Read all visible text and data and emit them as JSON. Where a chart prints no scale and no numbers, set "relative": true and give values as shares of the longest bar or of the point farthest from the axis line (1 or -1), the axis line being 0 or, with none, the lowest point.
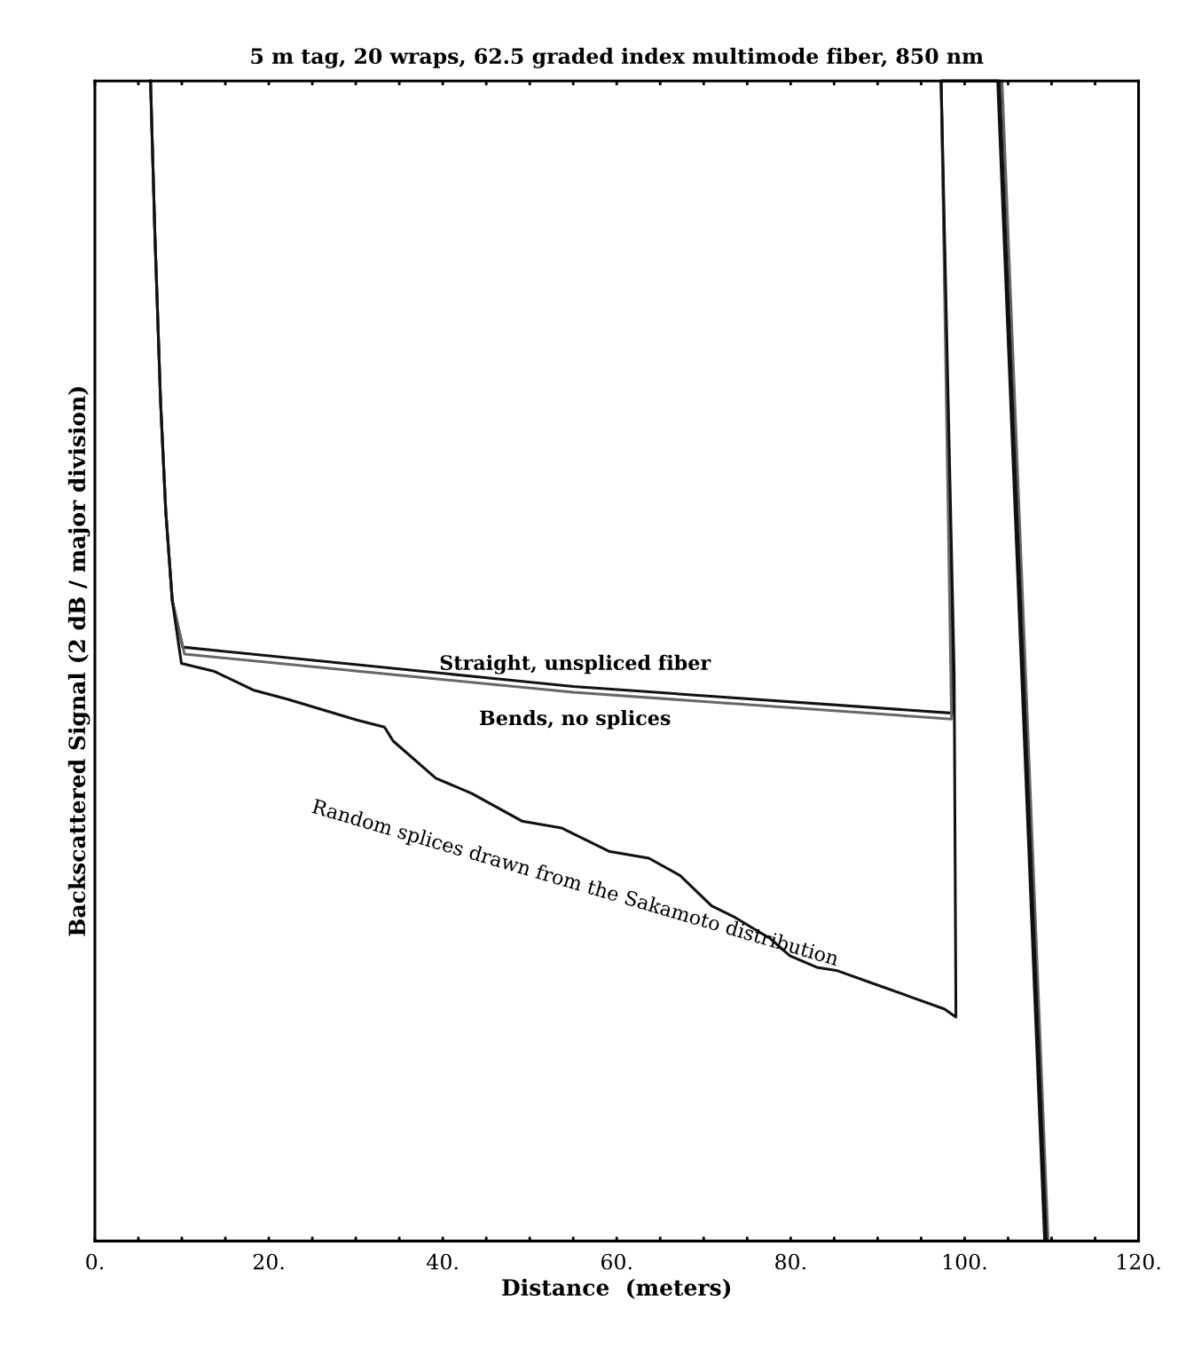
{
  "chart_data": {
    "type": "line",
    "title": "5 m tag, 20 wraps, 62.5 graded index multimode fiber, 850 nm",
    "xlabel": "Distance  (meters)",
    "ylabel": "Backscattered Signal (2 dB / major division)",
    "relative": true,
    "tick_labels": "x",
    "grid": false,
    "legend": false,
    "marker": "none",
    "line_style": "solid",
    "xlim": [
      0,
      120
    ],
    "xticks": [
      {
        "value": 0,
        "label": "0."
      },
      {
        "value": 5,
        "label": null
      },
      {
        "value": 10,
        "label": null
      },
      {
        "value": 15,
        "label": null
      },
      {
        "value": 20,
        "label": "20."
      },
      {
        "value": 25,
        "label": null
      },
      {
        "value": 30,
        "label": null
      },
      {
        "value": 35,
        "label": null
      },
      {
        "value": 40,
        "label": "40."
      },
      {
        "value": 45,
        "label": null
      },
      {
        "value": 50,
        "label": null
      },
      {
        "value": 55,
        "label": null
      },
      {
        "value": 60,
        "label": "60."
      },
      {
        "value": 65,
        "label": null
      },
      {
        "value": 70,
        "label": null
      },
      {
        "value": 75,
        "label": null
      },
      {
        "value": 80,
        "label": "80."
      },
      {
        "value": 85,
        "label": null
      },
      {
        "value": 90,
        "label": null
      },
      {
        "value": 95,
        "label": null
      },
      {
        "value": 100,
        "label": "100."
      },
      {
        "value": 105,
        "label": null
      },
      {
        "value": 110,
        "label": null
      },
      {
        "value": 115,
        "label": null
      },
      {
        "value": 120,
        "label": "120."
      }
    ],
    "series": [
      {
        "name": "Straight, unspliced fiber",
        "color": "#111111",
        "x": [
          6.4,
          6.9,
          7.55,
          8.15,
          8.9,
          10.1,
          55,
          98.7,
          97.3,
          103.8,
          109.2
        ],
        "values": [
          1.0,
          0.868,
          0.724,
          0.629,
          0.552,
          0.512,
          0.478,
          0.455,
          1.0,
          1.0,
          0
        ]
      },
      {
        "name": "Bends, no splices",
        "color": "#666666",
        "x": [
          6.4,
          6.9,
          7.55,
          8.15,
          8.9,
          10.3,
          55,
          98.5,
          97.3,
          104.3,
          109.6
        ],
        "values": [
          1.0,
          0.868,
          0.724,
          0.629,
          0.552,
          0.506,
          0.473,
          0.45,
          1.0,
          1.0,
          0
        ]
      },
      {
        "name": "Random splices drawn from the Sakamoto distribution",
        "color": "#111111",
        "x": [
          6.4,
          6.9,
          7.55,
          8.15,
          8.9,
          9.95,
          13.76,
          18.2,
          22.2,
          30.2,
          33.3,
          34.3,
          39.2,
          43.3,
          49.1,
          53.7,
          59.1,
          63.7,
          67.3,
          70.9,
          73.6,
          77.6,
          79.9,
          83.0,
          85.4,
          89.5,
          93.6,
          97.7,
          99.0,
          98.8,
          97.3,
          104.0,
          109.4
        ],
        "values": [
          1.0,
          0.868,
          0.724,
          0.629,
          0.552,
          0.498,
          0.491,
          0.475,
          0.467,
          0.449,
          0.443,
          0.431,
          0.399,
          0.386,
          0.362,
          0.356,
          0.336,
          0.33,
          0.315,
          0.289,
          0.279,
          0.261,
          0.246,
          0.236,
          0.233,
          0.222,
          0.211,
          0.2,
          0.193,
          0.49,
          1.0,
          1.0,
          0
        ]
      }
    ]
  }
}
